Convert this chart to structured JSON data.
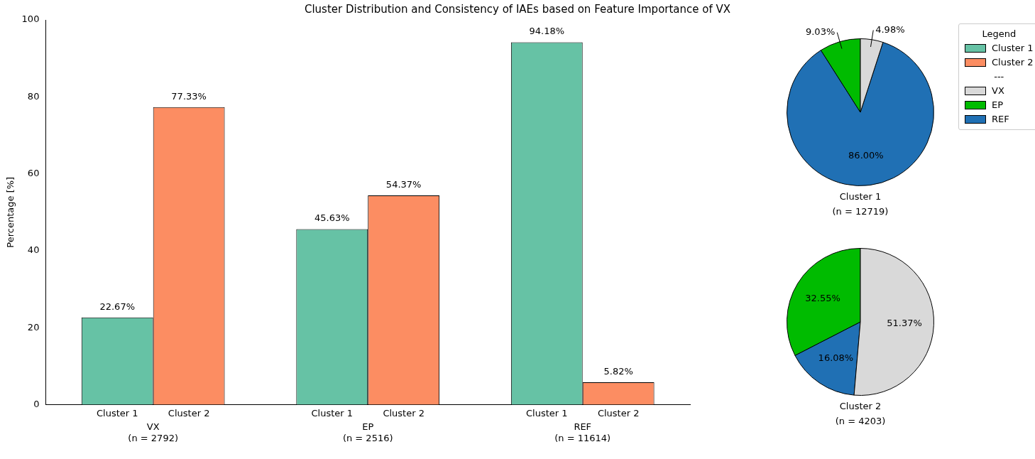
{
  "chart_data": [
    {
      "type": "bar",
      "title": "Cluster Distribution and Consistency of IAEs based on Feature Importance of VX",
      "ylabel": "Percentage [%]",
      "categories": [
        "VX\n(n = 2792)",
        "EP\n(n = 2516)",
        "REF\n(n = 11614)"
      ],
      "series": [
        {
          "name": "Cluster 1",
          "color": "#66c2a5",
          "values": [
            22.67,
            45.63,
            94.18
          ],
          "value_labels": [
            "22.67%",
            "45.63%",
            "94.18%"
          ]
        },
        {
          "name": "Cluster 2",
          "color": "#fc8d62",
          "values": [
            77.33,
            54.37,
            5.82
          ],
          "value_labels": [
            "77.33%",
            "54.37%",
            "5.82%"
          ]
        }
      ],
      "ylim": [
        0,
        100
      ],
      "yticks": [
        0,
        20,
        40,
        60,
        80,
        100
      ],
      "legend": "right",
      "legend_title": "Legend"
    },
    {
      "type": "pie",
      "xlabel": "Cluster 1\n(n = 12719)",
      "categories": [
        "VX",
        "EP",
        "REF"
      ],
      "values": [
        4.98,
        9.03,
        86.0
      ],
      "value_labels": [
        "4.98%",
        "9.03%",
        "86.00%"
      ],
      "colors": [
        "#d9d9d9",
        "#00bb00",
        "#2070b4"
      ],
      "legend": "right",
      "legend_title": "---"
    },
    {
      "type": "pie",
      "xlabel": "Cluster 2\n(n = 4203)",
      "categories": [
        null,
        null,
        null
      ],
      "values": [
        51.37,
        32.55,
        16.08
      ],
      "value_labels": [
        "51.37%",
        "32.55%",
        "16.08%"
      ],
      "colors": [
        "#d9d9d9",
        "#00bb00",
        "#2070b4"
      ]
    }
  ]
}
